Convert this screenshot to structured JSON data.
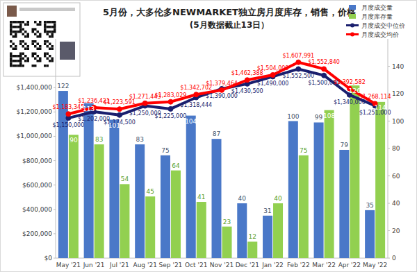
{
  "chart_data": {
    "type": "bar",
    "title": "5月份，大多伦多NEWMARKET独立房月度库存，销售，价格",
    "subtitle": "(5月数据截止13日）",
    "categories": [
      "May '21",
      "Jun '21",
      "Jul '21",
      "Aug '21",
      "Sep '21",
      "Oct '21",
      "Nov '21",
      "Dec '21",
      "Jan '22",
      "Feb '22",
      "Mar '22",
      "Apr '22",
      "May '22"
    ],
    "series": [
      {
        "name": "月度成交量",
        "type": "bar",
        "color": "#4a78c8",
        "axis": "y2",
        "values": [
          122,
          113,
          101,
          83,
          75,
          104,
          87,
          40,
          31,
          100,
          99,
          79,
          35
        ]
      },
      {
        "name": "月度库存量",
        "type": "bar",
        "color": "#92d050",
        "axis": "y2",
        "values": [
          90,
          83,
          54,
          45,
          64,
          41,
          23,
          12,
          40,
          75,
          108,
          126,
          114
        ]
      },
      {
        "name": "月度成交中位价",
        "type": "line",
        "color": "#1a1f6e",
        "marker": "circle",
        "values": [
          1150000,
          1202000,
          1174500,
          1250000,
          1225000,
          1318444,
          1390000,
          1430500,
          1490000,
          1552500,
          1500000,
          1340000,
          1251000
        ],
        "value_labels": [
          "$1,150,000",
          "$1,202,000",
          "$1,174,500",
          "$1,250,000",
          "$1,225,000",
          "$1,318,444",
          "$1,390,000",
          "$1,430,500",
          "$1,490,000",
          "$1,552,500",
          "$1,500,000",
          "$1,340,000",
          "$1,251,000"
        ]
      },
      {
        "name": "月度成交均价",
        "type": "line",
        "color": "#ff0000",
        "marker": "circle",
        "values": [
          1183345,
          1236421,
          1223591,
          1271443,
          1283029,
          1342702,
          1379464,
          1462388,
          1504000,
          1607991,
          1552840,
          1392582,
          1268114
        ],
        "value_labels": [
          "$1,183,345",
          "$1,236,421",
          "$1,223,591",
          "$1,271,443",
          "$1,283,029",
          "$1,342,702",
          "$1,379,464",
          "$1,462,388",
          "$1,504,000",
          "$1,607,991",
          "$1,552,840",
          "$1,392,582",
          "$1,268,114"
        ]
      }
    ],
    "ylim": [
      0,
      1800000
    ],
    "yticks": [
      {
        "value": 0,
        "label": "$0"
      },
      {
        "value": 200000,
        "label": "$200,000"
      },
      {
        "value": 400000,
        "label": "$400,000"
      },
      {
        "value": 600000,
        "label": "$600,000"
      },
      {
        "value": 800000,
        "label": "$800,000"
      },
      {
        "value": 1000000,
        "label": "$1,000,000"
      },
      {
        "value": 1200000,
        "label": "$1,200,000"
      },
      {
        "value": 1400000,
        "label": "$1,400,000"
      }
    ],
    "y2lim": [
      0,
      160
    ],
    "y2ticks": [
      0,
      20,
      40,
      60,
      80,
      100,
      120,
      140
    ],
    "data_labels": true,
    "legend": "top-right",
    "grid": false
  }
}
